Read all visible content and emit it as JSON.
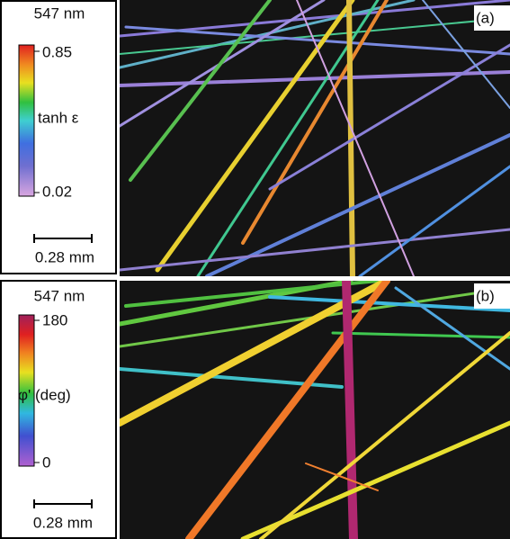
{
  "panels": [
    {
      "label": "(a)",
      "wavelength": "547 nm",
      "colorbar": {
        "max": "0.85",
        "quantity": "tanh ε",
        "min": "0.02"
      },
      "scale_bar": "0.28 mm"
    },
    {
      "label": "(b)",
      "wavelength": "547 nm",
      "colorbar": {
        "max": "180",
        "quantity": "φ' (deg)",
        "min": "0"
      },
      "scale_bar": "0.28 mm"
    }
  ]
}
